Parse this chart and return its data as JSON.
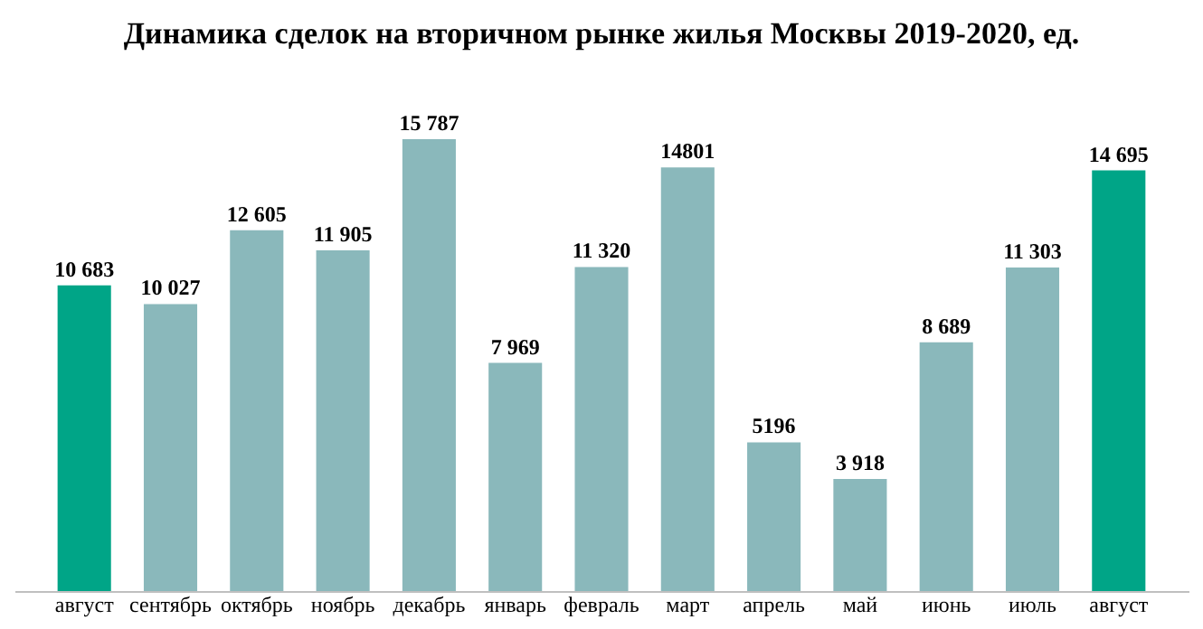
{
  "chart_data": {
    "type": "bar",
    "title": "Динамика сделок на вторичном рынке жилья Москвы 2019-2020, ед.",
    "categories": [
      "август",
      "сентябрь",
      "октябрь",
      "ноябрь",
      "декабрь",
      "январь",
      "февраль",
      "март",
      "апрель",
      "май",
      "июнь",
      "июль",
      "август"
    ],
    "values": [
      10683,
      10027,
      12605,
      11905,
      15787,
      7969,
      11320,
      14801,
      5196,
      3918,
      8689,
      11303,
      14695
    ],
    "colors": [
      "#00a587",
      "#8ab8bb",
      "#8ab8bb",
      "#8ab8bb",
      "#8ab8bb",
      "#8ab8bb",
      "#8ab8bb",
      "#8ab8bb",
      "#8ab8bb",
      "#8ab8bb",
      "#8ab8bb",
      "#8ab8bb",
      "#00a587"
    ],
    "value_labels": [
      "10 683",
      "10 027",
      "12 605",
      "11 905",
      "15 787",
      "7 969",
      "11 320",
      "14801",
      "5196",
      "3 918",
      "8 689",
      "11 303",
      "14 695"
    ],
    "grid": false
  }
}
